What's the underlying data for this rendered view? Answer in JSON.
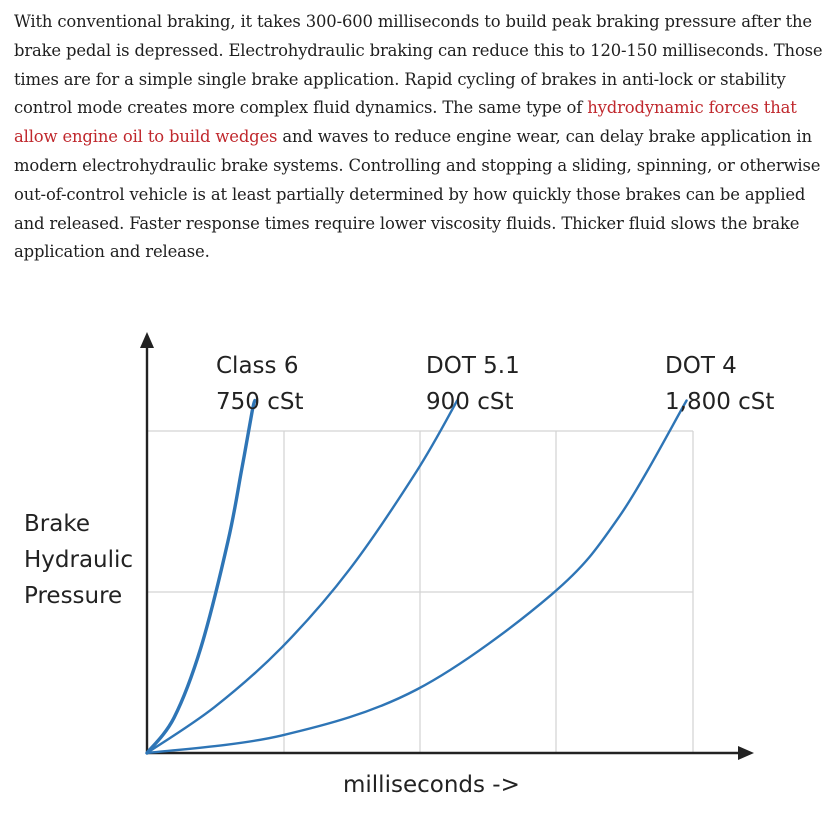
{
  "article": {
    "text_before_link": "With conventional braking, it takes 300-600 milliseconds to build peak braking pressure after the brake pedal is depressed. Electrohydraulic braking can reduce this to 120-150 milliseconds. Those times are for a simple single brake application. Rapid cycling of brakes in anti-lock or stability control mode creates more complex fluid dynamics. The same type of ",
    "link_text": "hydrodynamic forces that allow engine oil to build wedges",
    "text_after_link": " and waves to reduce engine wear, can delay brake application in modern electrohydraulic brake systems. Controlling and stopping a sliding, spinning, or otherwise out-of-control vehicle is at least partially determined by how quickly those brakes can be applied and released. Faster response times require lower viscosity fluids. Thicker fluid slows the brake application and release.",
    "link_color": "#c0282d"
  },
  "chart_data": {
    "type": "line",
    "xlabel": "milliseconds ->",
    "ylabel": [
      "Brake",
      "Hydraulic",
      "Pressure"
    ],
    "grid": true,
    "series": [
      {
        "name": "Class 6",
        "viscosity": "750 cSt",
        "x": [
          0,
          0.2,
          0.4,
          0.6,
          0.7,
          0.78,
          0.8
        ],
        "y": [
          0,
          0.1,
          0.3,
          0.6,
          0.8,
          0.97,
          1.0
        ],
        "color": "#2e75b6"
      },
      {
        "name": "DOT 5.1",
        "viscosity": "900 cSt",
        "x": [
          0,
          0.5,
          1.0,
          1.5,
          2.0,
          2.3
        ],
        "y": [
          0,
          0.13,
          0.3,
          0.52,
          0.8,
          1.0
        ],
        "color": "#2e75b6"
      },
      {
        "name": "DOT 4",
        "viscosity": "1,800 cSt",
        "x": [
          0,
          1,
          2,
          3,
          3.5,
          4.0
        ],
        "y": [
          0,
          0.05,
          0.18,
          0.45,
          0.67,
          1.0
        ],
        "color": "#2e75b6"
      }
    ],
    "xlim": [
      0,
      4.5
    ],
    "ylim": [
      0,
      1.2
    ]
  }
}
